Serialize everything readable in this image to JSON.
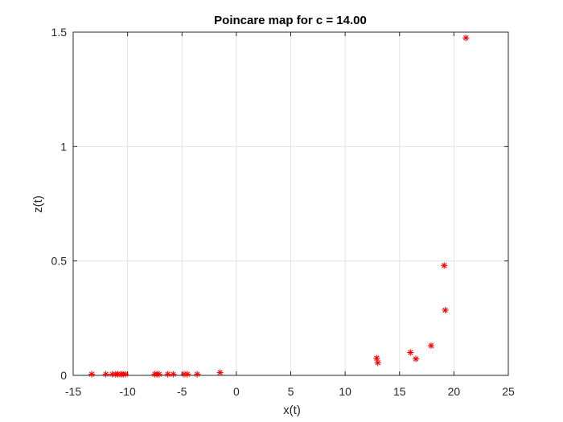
{
  "chart_data": {
    "type": "scatter",
    "title": "Poincare map for c = 14.00",
    "xlabel": "x(t)",
    "ylabel": "z(t)",
    "xlim": [
      -15,
      25
    ],
    "ylim": [
      0,
      1.5
    ],
    "xticks": [
      -15,
      -10,
      -5,
      0,
      5,
      10,
      15,
      20,
      25
    ],
    "xtick_labels": [
      "-15",
      "-10",
      "-5",
      "0",
      "5",
      "10",
      "15",
      "20",
      "25"
    ],
    "yticks": [
      0,
      0.5,
      1,
      1.5
    ],
    "ytick_labels": [
      "0",
      "0.5",
      "1",
      "1.5"
    ],
    "grid": true,
    "marker": "asterisk",
    "marker_color": "#ff0000",
    "points": [
      {
        "x": -13.3,
        "y": 0.005
      },
      {
        "x": -12.0,
        "y": 0.005
      },
      {
        "x": -11.4,
        "y": 0.005
      },
      {
        "x": -11.1,
        "y": 0.005
      },
      {
        "x": -10.9,
        "y": 0.005
      },
      {
        "x": -10.6,
        "y": 0.005
      },
      {
        "x": -10.4,
        "y": 0.005
      },
      {
        "x": -10.2,
        "y": 0.005
      },
      {
        "x": -7.5,
        "y": 0.005
      },
      {
        "x": -7.3,
        "y": 0.005
      },
      {
        "x": -7.1,
        "y": 0.005
      },
      {
        "x": -6.3,
        "y": 0.005
      },
      {
        "x": -5.8,
        "y": 0.005
      },
      {
        "x": -4.8,
        "y": 0.005
      },
      {
        "x": -4.5,
        "y": 0.005
      },
      {
        "x": -3.6,
        "y": 0.005
      },
      {
        "x": -1.5,
        "y": 0.012
      },
      {
        "x": 12.9,
        "y": 0.075
      },
      {
        "x": 13.0,
        "y": 0.055
      },
      {
        "x": 16.0,
        "y": 0.1
      },
      {
        "x": 16.5,
        "y": 0.072
      },
      {
        "x": 17.9,
        "y": 0.13
      },
      {
        "x": 19.1,
        "y": 0.48
      },
      {
        "x": 19.2,
        "y": 0.285
      },
      {
        "x": 21.1,
        "y": 1.475
      }
    ]
  }
}
